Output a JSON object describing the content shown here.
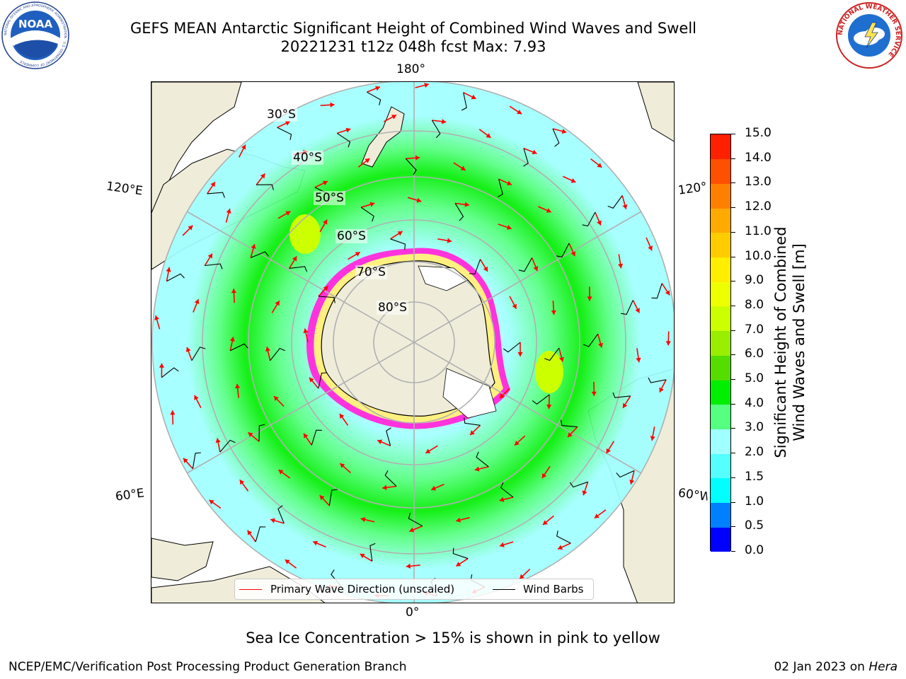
{
  "header": {
    "title_line1": "GEFS MEAN Antarctic Significant Height of Combined Wind Waves and Swell",
    "title_line2": "20221231 t12z 048h fcst   Max: 7.93",
    "noaa_logo_text": "NOAA",
    "noaa_ring_text": "NATIONAL OCEANIC AND ATMOSPHERIC ADMINISTRATION · U.S. DEPARTMENT OF COMMERCE",
    "nws_ring_text": "NATIONAL WEATHER SERVICE"
  },
  "map": {
    "projection": "south polar stereographic",
    "longitude_labels": {
      "top": "180°",
      "bottom": "0°",
      "left_upper": "120°E",
      "left_lower": "60°E",
      "right_upper": "120°W",
      "right_lower": "60°W"
    },
    "latitude_labels": [
      "30°S",
      "40°S",
      "50°S",
      "60°S",
      "70°S",
      "80°S"
    ],
    "colors": {
      "land": "#efedda",
      "coast": "#000000",
      "grid": "#b0b0b0",
      "arrow": "#ff0000",
      "barb": "#000000",
      "ice_pink": "#ff33dd",
      "ice_yellow": "#fff080"
    }
  },
  "legend": {
    "wave_label": "Primary Wave Direction (unscaled)",
    "wave_color": "#ff0000",
    "barb_label": "Wind Barbs",
    "barb_color": "#000000"
  },
  "colorbar": {
    "title_line1": "Significant Height of Combined",
    "title_line2": "Wind Waves and Swell [m]",
    "ticks": [
      "0.0",
      "0.5",
      "1.0",
      "1.5",
      "2.0",
      "3.0",
      "4.0",
      "5.0",
      "6.0",
      "7.0",
      "8.0",
      "9.0",
      "10.0",
      "11.0",
      "12.0",
      "13.0",
      "14.0",
      "15.0"
    ],
    "colors": [
      "#0000ff",
      "#0080ff",
      "#00ffff",
      "#55ffff",
      "#a0ffff",
      "#55ff80",
      "#00ee00",
      "#55dd00",
      "#99ee00",
      "#ccff00",
      "#eeff00",
      "#ffee00",
      "#ffcc00",
      "#ffaa00",
      "#ff8000",
      "#ff5000",
      "#ff2000"
    ]
  },
  "footer": {
    "ice_note": "Sea Ice Concentration > 15% is shown in pink to yellow",
    "left": "NCEP/EMC/Verification Post Processing Product Generation Branch",
    "right_date": "02 Jan 2023 on ",
    "right_host": "Hera"
  }
}
